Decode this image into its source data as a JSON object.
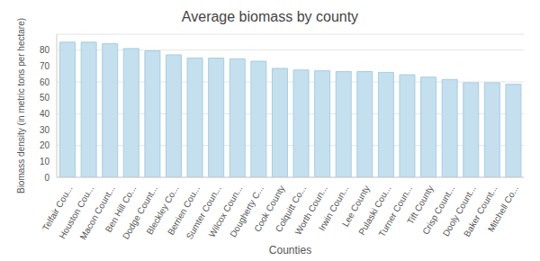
{
  "chart_data": {
    "type": "bar",
    "title": "Average biomass by county",
    "x_label": "Counties",
    "y_label": "Biomass density (in metric tons per hectare)",
    "categories": [
      "Telfair Cou...",
      "Houston Cou...",
      "Macon Count...",
      "Ben Hill Co...",
      "Dodge Count...",
      "Bleckley Co...",
      "Berrien Cou...",
      "Sumter Coun...",
      "Wilcox Coun...",
      "Dougherty C...",
      "Cook County",
      "Colquitt Co...",
      "Worth Coun...",
      "Irwin Coun...",
      "Lee County",
      "Pulaski Cou...",
      "Turner Coun...",
      "Tift County",
      "Crisp Count...",
      "Dooly Count...",
      "Baker Count...",
      "Mitchell Co..."
    ],
    "values": [
      85,
      85,
      84,
      81,
      79.5,
      77,
      75,
      75,
      74.5,
      73,
      68.5,
      67.5,
      67,
      66.5,
      66.5,
      66,
      64.5,
      63,
      61.5,
      59.5,
      59.5,
      58.5
    ],
    "color": "#c4dfee",
    "ylim": [
      0,
      90
    ],
    "yticks": [
      0,
      10,
      20,
      30,
      40,
      50,
      60,
      70,
      80
    ],
    "grid": true
  }
}
